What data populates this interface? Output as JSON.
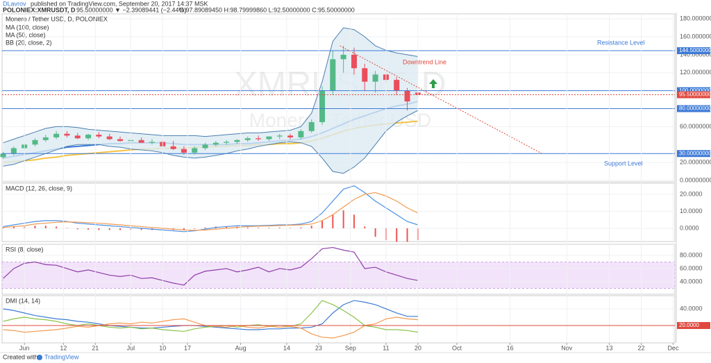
{
  "header": {
    "author": "DLavrov",
    "published": "published on TradingView.com, September 20, 2017 14:37 MSK",
    "symbol": "POLONIEX:XMRUSDT, D",
    "quote": "95.50000000 ▼ −2.39089441 (−2.44%)",
    "ohlc": "O:97.89089450 H:98.79999860 L:92.50000000 C:95.50000000"
  },
  "footer": {
    "created": "Created with",
    "brand": "TradingView"
  },
  "chart_data": [
    {
      "type": "candlestick",
      "title": "Monero / Tether USD, D, POLONIEX",
      "watermark": "XMRUSDT, D",
      "watermark_sub": "Monero / Tether USD",
      "annotations": {
        "resistance": "Resistance Level",
        "support": "Support Level",
        "downtrend": "Downtrend Line"
      },
      "xlim": [
        -6.3,
        183.5
      ],
      "ylim": [
        -1.5,
        185.5
      ],
      "yticks": [
        {
          "value": 180,
          "label": "180.00000000"
        },
        {
          "value": 160,
          "label": "160.00000000"
        },
        {
          "value": 140,
          "label": "140.00000000"
        },
        {
          "value": 120,
          "label": "120.00000000"
        },
        {
          "value": 60,
          "label": "60.00000000"
        },
        {
          "value": 20,
          "label": "20.00000000"
        },
        {
          "value": 0,
          "label": "0.00000000"
        }
      ],
      "x": [
        -6,
        -3,
        0,
        3,
        6,
        9,
        12,
        15,
        18,
        21,
        24,
        27,
        30,
        33,
        36,
        39,
        42,
        45,
        48,
        51,
        54,
        57,
        60,
        63,
        66,
        69,
        72,
        75,
        78,
        81,
        84,
        87,
        90,
        93,
        96,
        99,
        102,
        105,
        108,
        111
      ],
      "open": [
        26,
        30,
        36,
        40,
        45,
        48,
        52,
        50,
        47,
        51,
        49,
        46,
        44,
        45,
        42,
        43,
        38,
        35,
        31,
        36,
        40,
        42,
        43,
        45,
        47,
        46,
        49,
        50,
        48,
        55,
        65,
        100,
        135,
        140,
        125,
        110,
        118,
        112,
        100,
        97.8908945
      ],
      "high": [
        32,
        38,
        42,
        47,
        51,
        55,
        55,
        53,
        52,
        54,
        52,
        49,
        47,
        48,
        46,
        45,
        44,
        38,
        38,
        42,
        44,
        45,
        46,
        49,
        50,
        49,
        52,
        52,
        57,
        68,
        105,
        145,
        150,
        148,
        130,
        122,
        121,
        115,
        103,
        98.7999986
      ],
      "low": [
        24,
        28,
        34,
        38,
        43,
        46,
        48,
        46,
        45,
        47,
        45,
        43,
        41,
        42,
        40,
        39,
        34,
        29,
        29,
        34,
        38,
        40,
        41,
        43,
        44,
        44,
        46,
        46,
        46,
        53,
        62,
        95,
        120,
        118,
        100,
        98,
        108,
        95,
        78,
        92.5
      ],
      "close": [
        30,
        36,
        40,
        45,
        48,
        52,
        50,
        47,
        51,
        49,
        46,
        44,
        45,
        42,
        43,
        38,
        35,
        31,
        36,
        40,
        42,
        43,
        45,
        47,
        46,
        49,
        50,
        48,
        55,
        65,
        100,
        135,
        140,
        125,
        110,
        118,
        112,
        100,
        88,
        95.5
      ],
      "up_color": "#53b987",
      "down_color": "#eb4d5c",
      "series": [
        {
          "name": "MA (100, close)",
          "color": "#f5c242",
          "values": [
            20,
            21,
            22,
            23,
            25,
            26,
            28,
            29,
            30,
            31,
            32,
            33,
            34,
            35,
            35,
            36,
            36,
            36,
            37,
            37,
            38,
            38,
            39,
            39,
            40,
            40,
            41,
            41,
            42,
            44,
            47,
            51,
            55,
            58,
            60,
            62,
            63,
            64,
            65,
            66
          ]
        },
        {
          "name": "MA (50, close)",
          "color": "#3d7ad6",
          "values": [
            25,
            27,
            29,
            31,
            33,
            35,
            37,
            38,
            39,
            40,
            41,
            41,
            42,
            42,
            42,
            42,
            41,
            40,
            40,
            40,
            40,
            40,
            41,
            41,
            42,
            43,
            44,
            45,
            46,
            49,
            53,
            58,
            63,
            68,
            72,
            76,
            80,
            83,
            85,
            88
          ]
        },
        {
          "name": "BB (20, close, 2)",
          "color": "#4a7fb0",
          "fill": "#dcebf3",
          "upper": [
            42,
            46,
            50,
            54,
            58,
            60,
            60,
            59,
            57,
            56,
            55,
            54,
            53,
            52,
            51,
            50,
            50,
            50,
            50,
            49,
            50,
            51,
            52,
            53,
            53,
            54,
            55,
            56,
            60,
            75,
            110,
            155,
            170,
            168,
            160,
            150,
            145,
            142,
            140,
            138
          ],
          "lower": [
            16,
            18,
            22,
            26,
            30,
            34,
            38,
            40,
            40,
            40,
            38,
            37,
            35,
            34,
            33,
            31,
            28,
            26,
            25,
            26,
            28,
            30,
            33,
            35,
            38,
            40,
            42,
            43,
            42,
            38,
            25,
            10,
            8,
            15,
            25,
            40,
            55,
            65,
            72,
            78
          ]
        }
      ],
      "levels": [
        {
          "value": 144.5,
          "label": "144.50000000",
          "color": "#3d7ad6"
        },
        {
          "value": 100,
          "label": "100.00000000",
          "color": "#3d7ad6"
        },
        {
          "value": 95.5,
          "label": "95.50000000",
          "color": "#e0483e",
          "dashed": true
        },
        {
          "value": 80,
          "label": "80.00000000",
          "color": "#3d7ad6"
        },
        {
          "value": 30,
          "label": "30.00000000",
          "color": "#3d7ad6"
        }
      ],
      "trendline": {
        "x": [
          89,
          146
        ],
        "y": [
          150,
          30
        ],
        "color": "#e0483e"
      }
    },
    {
      "type": "line",
      "title": "MACD (12, 26, close, 9)",
      "xlim": [
        -6.3,
        183.5
      ],
      "ylim": [
        -7.8,
        26.5
      ],
      "yticks": [
        {
          "value": 20,
          "label": "20.0000"
        },
        {
          "value": 10,
          "label": "10.0000"
        },
        {
          "value": 0,
          "label": "0.0000"
        }
      ],
      "x": [
        -6,
        -3,
        0,
        3,
        6,
        9,
        12,
        15,
        18,
        21,
        24,
        27,
        30,
        33,
        36,
        39,
        42,
        45,
        48,
        51,
        54,
        57,
        60,
        63,
        66,
        69,
        72,
        75,
        78,
        81,
        84,
        87,
        90,
        93,
        96,
        99,
        102,
        105,
        108,
        111
      ],
      "histogram": {
        "color": "#ef5350",
        "values": [
          0.5,
          1,
          1.5,
          1.5,
          1.5,
          1,
          0.2,
          -0.6,
          -0.8,
          -1,
          -1,
          -1,
          -1,
          -1,
          -1,
          -1,
          -1,
          -1,
          -0.3,
          0.5,
          1,
          1,
          1,
          0.5,
          0.3,
          0.3,
          0.4,
          0.2,
          0.5,
          1.5,
          4.5,
          8,
          10.5,
          8,
          1,
          -5,
          -7,
          -8,
          -8,
          -7
        ]
      },
      "series": [
        {
          "color": "#4a90e2",
          "values": [
            1,
            2,
            3,
            4,
            4.5,
            4.5,
            4,
            3,
            2.5,
            2,
            1.5,
            1,
            0.5,
            0,
            -0.5,
            -1,
            -1.5,
            -2,
            -1.5,
            -0.5,
            0.5,
            1,
            1.5,
            1.5,
            1.5,
            1.7,
            2,
            2,
            2.5,
            4,
            9,
            16,
            23,
            25,
            21,
            16,
            12,
            8,
            4,
            2
          ]
        },
        {
          "color": "#f39a4f",
          "values": [
            0.5,
            1,
            1.5,
            2.5,
            3,
            3.5,
            3.8,
            3.6,
            3.3,
            3,
            2.5,
            2,
            1.5,
            1,
            0.5,
            0,
            -0.5,
            -1,
            -1.2,
            -1,
            -0.5,
            0,
            0.5,
            1,
            1.2,
            1.4,
            1.6,
            1.8,
            2,
            2.5,
            4.5,
            8,
            12.5,
            17,
            20,
            21,
            19,
            16,
            12,
            9
          ]
        }
      ]
    },
    {
      "type": "line",
      "title": "RSI (8, close)",
      "xlim": [
        -6.3,
        183.5
      ],
      "ylim": [
        21,
        96.8
      ],
      "yticks": [
        {
          "value": 80,
          "label": "80.0000"
        },
        {
          "value": 60,
          "label": "60.0000"
        },
        {
          "value": 40,
          "label": "40.0000"
        }
      ],
      "band": {
        "range": [
          30,
          70
        ],
        "color": "#f3e3fa"
      },
      "x": [
        -6,
        -3,
        0,
        3,
        6,
        9,
        12,
        15,
        18,
        21,
        24,
        27,
        30,
        33,
        36,
        39,
        42,
        45,
        48,
        51,
        54,
        57,
        60,
        63,
        66,
        69,
        72,
        75,
        78,
        81,
        84,
        87,
        90,
        93,
        96,
        99,
        102,
        105,
        108,
        111
      ],
      "series": [
        {
          "color": "#8e3ca8",
          "values": [
            45,
            60,
            68,
            70,
            66,
            65,
            60,
            55,
            58,
            54,
            50,
            48,
            50,
            45,
            46,
            42,
            38,
            35,
            50,
            56,
            58,
            60,
            55,
            58,
            62,
            55,
            60,
            58,
            62,
            75,
            90,
            92,
            88,
            85,
            60,
            62,
            55,
            50,
            45,
            42
          ]
        }
      ]
    },
    {
      "type": "line",
      "title": "DMI (14, 14)",
      "xlim": [
        -6.3,
        183.5
      ],
      "ylim": [
        -0.8,
        55.8
      ],
      "yticks": [
        {
          "value": 40,
          "label": "40.0000"
        }
      ],
      "levels": [
        {
          "value": 20,
          "label": "20.0000",
          "color": "#e0483e"
        }
      ],
      "x": [
        -6,
        -3,
        0,
        3,
        6,
        9,
        12,
        15,
        18,
        21,
        24,
        27,
        30,
        33,
        36,
        39,
        42,
        45,
        48,
        51,
        54,
        57,
        60,
        63,
        66,
        69,
        72,
        75,
        78,
        81,
        84,
        87,
        90,
        93,
        96,
        99,
        102,
        105,
        108,
        111
      ],
      "series": [
        {
          "color": "#3d7ad6",
          "values": [
            40,
            38,
            35,
            32,
            30,
            28,
            27,
            25,
            24,
            22,
            20,
            19,
            18,
            17,
            17,
            18,
            19,
            20,
            20,
            19,
            18,
            17,
            16,
            15,
            15,
            16,
            16,
            17,
            17,
            18,
            22,
            35,
            45,
            50,
            48,
            45,
            40,
            35,
            31,
            31
          ]
        },
        {
          "color": "#8bc34a",
          "values": [
            25,
            28,
            30,
            28,
            27,
            25,
            22,
            20,
            22,
            20,
            18,
            17,
            18,
            16,
            17,
            15,
            14,
            13,
            16,
            18,
            19,
            20,
            18,
            20,
            21,
            19,
            20,
            19,
            22,
            35,
            50,
            45,
            38,
            30,
            20,
            18,
            15,
            15,
            14,
            12
          ]
        },
        {
          "color": "#f39a4f",
          "values": [
            15,
            14,
            12,
            13,
            14,
            15,
            17,
            19,
            18,
            20,
            22,
            23,
            22,
            24,
            23,
            25,
            27,
            28,
            24,
            20,
            19,
            18,
            20,
            18,
            17,
            19,
            18,
            19,
            17,
            10,
            6,
            5,
            8,
            12,
            20,
            22,
            28,
            30,
            28,
            27
          ]
        }
      ],
      "xticks": [
        {
          "value": 0,
          "label": "Jun"
        },
        {
          "value": 11,
          "label": "12"
        },
        {
          "value": 20,
          "label": "21"
        },
        {
          "value": 30,
          "label": "Jul"
        },
        {
          "value": 39,
          "label": "10"
        },
        {
          "value": 46,
          "label": "17"
        },
        {
          "value": 61,
          "label": "Aug"
        },
        {
          "value": 74,
          "label": "14"
        },
        {
          "value": 83,
          "label": "23"
        },
        {
          "value": 92,
          "label": "Sep"
        },
        {
          "value": 102,
          "label": "11"
        },
        {
          "value": 111,
          "label": "20"
        },
        {
          "value": 122,
          "label": "Oct"
        },
        {
          "value": 137,
          "label": "16"
        },
        {
          "value": 153,
          "label": "Nov"
        },
        {
          "value": 165,
          "label": "13"
        },
        {
          "value": 174,
          "label": "22"
        },
        {
          "value": 183,
          "label": "Dec"
        }
      ]
    }
  ]
}
